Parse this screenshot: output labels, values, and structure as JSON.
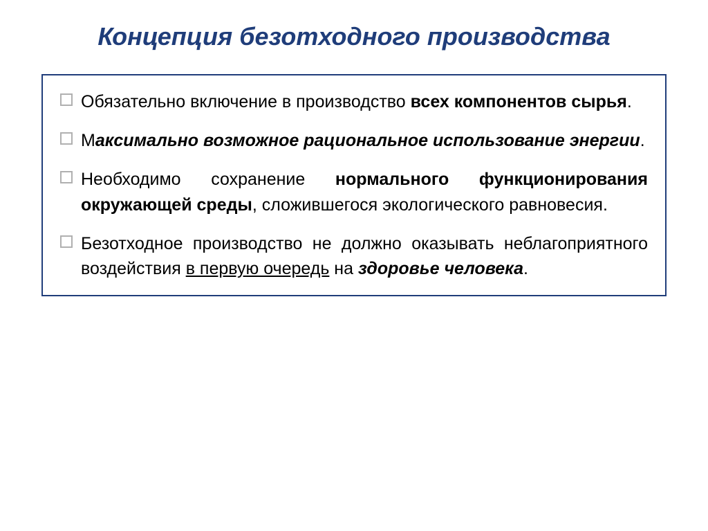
{
  "title": "Концепция безотходного производства",
  "items": [
    {
      "prefix": "Обязательно включение в производство ",
      "bold1": "всех компонентов сырья",
      "suffix": "."
    },
    {
      "prefix_first_letter": "М",
      "italic_text": "аксимально возможное рациональное использование энергии",
      "suffix": "."
    },
    {
      "prefix": "Необходимо сохранение ",
      "bold1": "нормального функционирования окружающей среды",
      "suffix": ", сложившегося экологического равновесия."
    },
    {
      "prefix": "Безотходное производство не должно оказывать неблагоприятного воздействия ",
      "underline_text": "в первую очередь",
      "mid": " на ",
      "bold_italic": "здоровье человека",
      "suffix": "."
    }
  ],
  "colors": {
    "title": "#1f3d7a",
    "border": "#1f3d7a",
    "bullet_border": "#b0b0b0",
    "text": "#000000",
    "background": "#ffffff"
  },
  "typography": {
    "title_fontsize": 36,
    "body_fontsize": 25
  }
}
